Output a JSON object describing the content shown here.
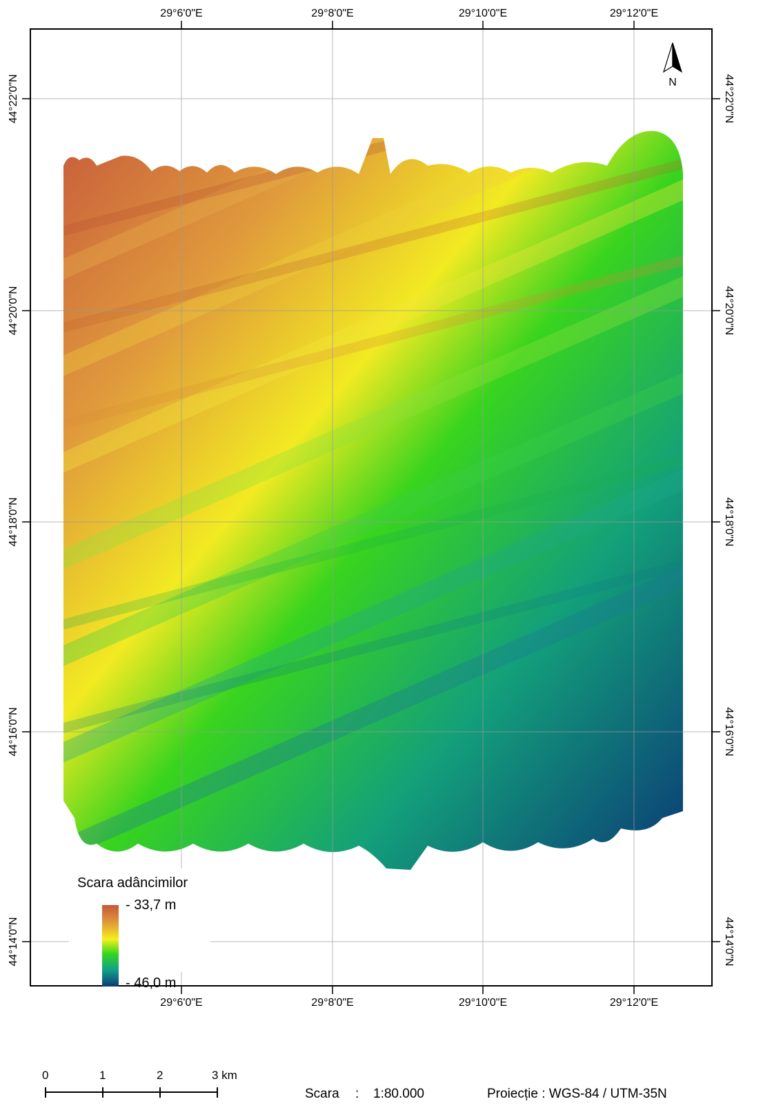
{
  "map": {
    "lon_labels": [
      "29°6'0\"E",
      "29°8'0\"E",
      "29°10'0\"E",
      "29°12'0\"E"
    ],
    "lat_labels": [
      "44°22'0\"N",
      "44°20'0\"N",
      "44°18'0\"N",
      "44°16'0\"N",
      "44°14'0\"N"
    ],
    "north_label": "N"
  },
  "legend": {
    "title": "Scara adâncimilor",
    "max_label": "- 33,7 m",
    "min_label": "- 46,0 m",
    "colors": [
      "#c4583a",
      "#e29a3a",
      "#f5f01c",
      "#33d61e",
      "#0fa08a",
      "#0d3a78"
    ]
  },
  "scalebar": {
    "ticks": [
      "0",
      "1",
      "2",
      "3 km"
    ]
  },
  "footer": {
    "scale_label": "Scara",
    "scale_sep": ":",
    "scale_value": "1:80.000",
    "projection": "Proiecție : WGS-84 / UTM-35N"
  }
}
